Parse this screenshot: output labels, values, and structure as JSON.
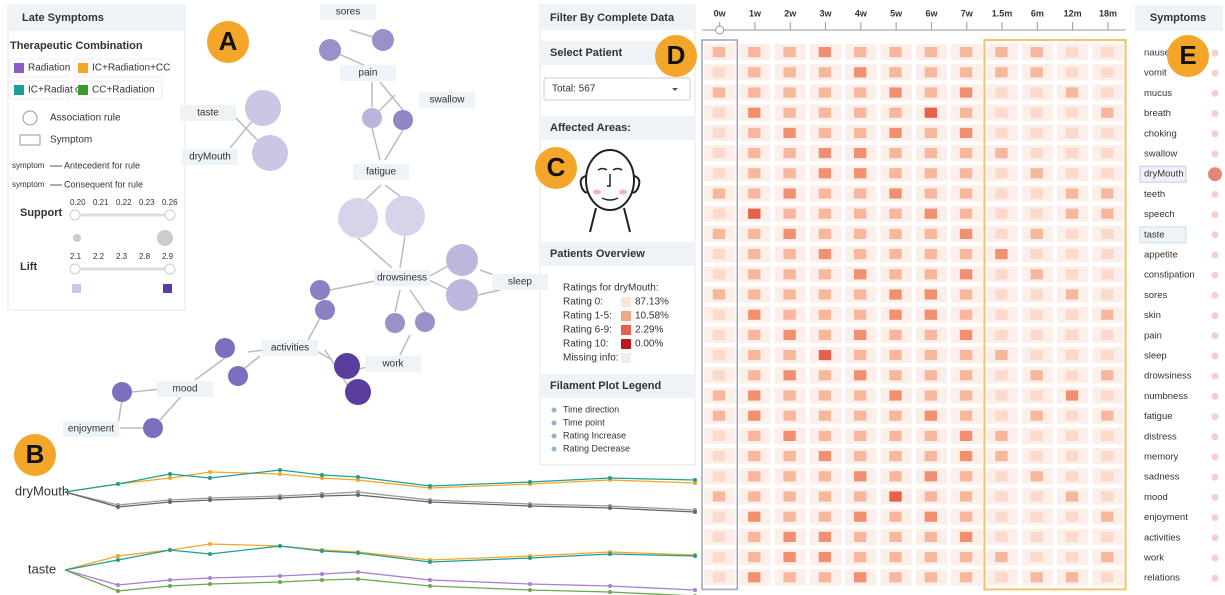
{
  "panel_labels": [
    "A",
    "B",
    "C",
    "D",
    "E"
  ],
  "legend": {
    "title": "Late Symptoms",
    "combination_title": "Therapeutic Combination",
    "combinations": [
      {
        "name": "Radiation",
        "color": "#8e5cc8"
      },
      {
        "name": "IC+Radiation+CC",
        "color": "#f5a623"
      },
      {
        "name": "IC+Radiation",
        "color": "#1f9e96"
      },
      {
        "name": "CC+Radiation",
        "color": "#3c9a2c"
      }
    ],
    "association_rule": "Association rule",
    "symptom": "Symptom",
    "antecedent_tag": "symptom",
    "antecedent": "Antecedent for rule",
    "consequent_tag": "symptom",
    "consequent": "Consequent for rule",
    "support_label": "Support",
    "support_ticks": [
      "0.20",
      "0.21",
      "0.22",
      "0.23",
      "0.26"
    ],
    "lift_label": "Lift",
    "lift_ticks": [
      "2.1",
      "2.2",
      "2.3",
      "2.8",
      "2.9"
    ]
  },
  "graph": {
    "nodes": [
      "sores",
      "pain",
      "swallow",
      "taste",
      "dryMouth",
      "fatigue",
      "drowsiness",
      "sleep",
      "activities",
      "work",
      "mood",
      "enjoyment"
    ]
  },
  "filaments": [
    "dryMouth",
    "taste"
  ],
  "controls": {
    "filter": "Filter By Complete Data",
    "select_patient": "Select Patient",
    "total": "Total: 567",
    "affected_areas": "Affected Areas:",
    "overview": "Patients Overview",
    "ratings_title": "Ratings for dryMouth:",
    "ratings": [
      {
        "label": "Rating 0:",
        "value": "87.13%"
      },
      {
        "label": "Rating 1-5:",
        "value": "10.58%"
      },
      {
        "label": "Rating 6-9:",
        "value": "2.29%"
      },
      {
        "label": "Rating 10:",
        "value": "0.00%"
      }
    ],
    "missing": "Missing info:",
    "filament_legend_title": "Filament Plot Legend",
    "filament_legend": [
      "Time direction",
      "Time point",
      "Rating Increase",
      "Rating Decrease"
    ]
  },
  "heatmap": {
    "columns": [
      "0w",
      "1w",
      "2w",
      "3w",
      "4w",
      "5w",
      "6w",
      "7w",
      "1.5m",
      "6m",
      "12m",
      "18m"
    ]
  },
  "symptoms": {
    "title": "Symptoms",
    "items": [
      "nausea",
      "vomit",
      "mucus",
      "breath",
      "choking",
      "swallow",
      "dryMouth",
      "teeth",
      "speech",
      "taste",
      "appetite",
      "constipation",
      "sores",
      "skin",
      "pain",
      "sleep",
      "drowsiness",
      "numbness",
      "fatigue",
      "distress",
      "memory",
      "sadness",
      "mood",
      "enjoyment",
      "activities",
      "work",
      "relations"
    ]
  }
}
